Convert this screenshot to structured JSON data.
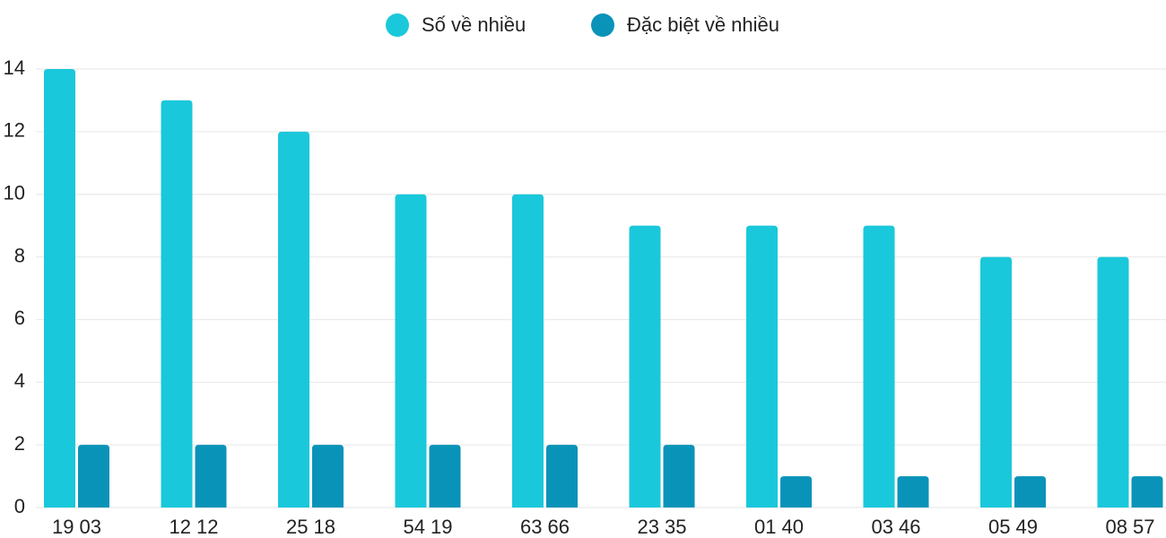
{
  "chart_data": {
    "type": "bar",
    "categories": [
      "19 03",
      "12 12",
      "25 18",
      "54 19",
      "63 66",
      "23 35",
      "01 40",
      "03 46",
      "05 49",
      "08 57"
    ],
    "series": [
      {
        "name": "Số về nhiều",
        "color": "#1ac8db",
        "values": [
          14,
          13,
          12,
          10,
          10,
          9,
          9,
          9,
          8,
          8
        ]
      },
      {
        "name": "Đặc biệt về nhiều",
        "color": "#0a93b8",
        "values": [
          2,
          2,
          2,
          2,
          2,
          2,
          1,
          1,
          1,
          1
        ]
      }
    ],
    "ylim": [
      0,
      14
    ],
    "yticks": [
      0,
      2,
      4,
      6,
      8,
      10,
      12,
      14
    ],
    "grid": true,
    "legend": "top"
  }
}
